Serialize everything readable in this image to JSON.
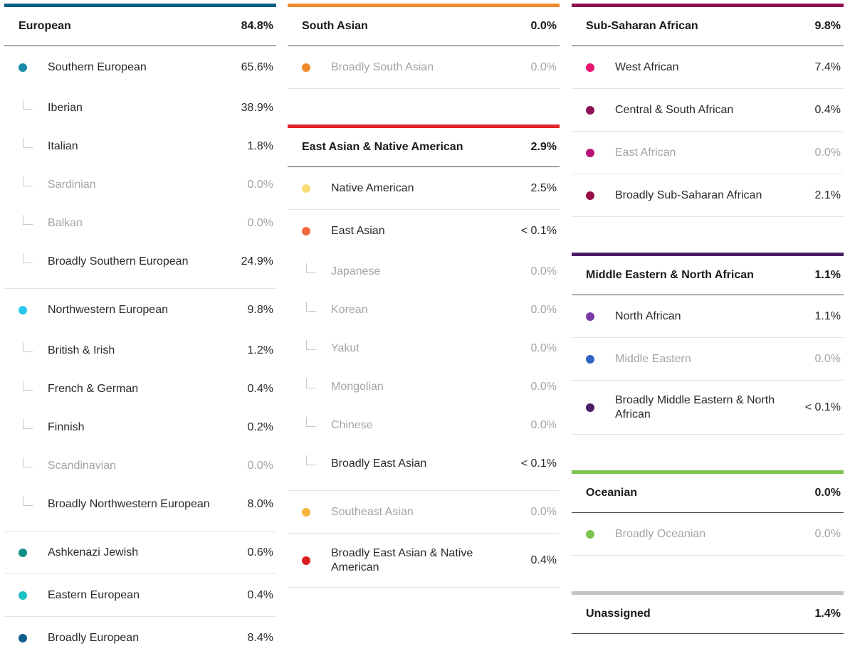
{
  "european": {
    "title": "European",
    "pct": "84.8%",
    "color": "#0b5e85",
    "groups": [
      {
        "label": "Southern European",
        "pct": "65.6%",
        "dot": "#1b8aa5",
        "subs": [
          {
            "label": "Iberian",
            "pct": "38.9%"
          },
          {
            "label": "Italian",
            "pct": "1.8%"
          },
          {
            "label": "Sardinian",
            "pct": "0.0%"
          },
          {
            "label": "Balkan",
            "pct": "0.0%"
          },
          {
            "label": "Broadly Southern European",
            "pct": "24.9%"
          }
        ]
      },
      {
        "label": "Northwestern European",
        "pct": "9.8%",
        "dot": "#27c7ee",
        "subs": [
          {
            "label": "British & Irish",
            "pct": "1.2%"
          },
          {
            "label": "French & German",
            "pct": "0.4%"
          },
          {
            "label": "Finnish",
            "pct": "0.2%"
          },
          {
            "label": "Scandinavian",
            "pct": "0.0%"
          },
          {
            "label": "Broadly Northwestern European",
            "pct": "8.0%"
          }
        ]
      },
      {
        "label": "Ashkenazi Jewish",
        "pct": "0.6%",
        "dot": "#138f86",
        "subs": []
      },
      {
        "label": "Eastern European",
        "pct": "0.4%",
        "dot": "#1cc2c2",
        "subs": []
      },
      {
        "label": "Broadly European",
        "pct": "8.4%",
        "dot": "#0c5f8a",
        "subs": []
      }
    ]
  },
  "south_asian": {
    "title": "South Asian",
    "pct": "0.0%",
    "color": "#f0892c",
    "rows": [
      {
        "label": "Broadly South Asian",
        "pct": "0.0%",
        "dot": "#f0892c"
      }
    ]
  },
  "east_asian": {
    "title": "East Asian & Native American",
    "pct": "2.9%",
    "color": "#e1242a",
    "groups": [
      {
        "label": "Native American",
        "pct": "2.5%",
        "dot": "#f9dc7a",
        "subs": []
      },
      {
        "label": "East Asian",
        "pct": "< 0.1%",
        "dot": "#f2673b",
        "subs": [
          {
            "label": "Japanese",
            "pct": "0.0%"
          },
          {
            "label": "Korean",
            "pct": "0.0%"
          },
          {
            "label": "Yakut",
            "pct": "0.0%"
          },
          {
            "label": "Mongolian",
            "pct": "0.0%"
          },
          {
            "label": "Chinese",
            "pct": "0.0%"
          },
          {
            "label": "Broadly East Asian",
            "pct": "< 0.1%"
          }
        ]
      },
      {
        "label": "Southeast Asian",
        "pct": "0.0%",
        "dot": "#f6b33b",
        "subs": []
      },
      {
        "label": "Broadly East Asian & Native American",
        "pct": "0.4%",
        "dot": "#dc1e22",
        "subs": []
      }
    ]
  },
  "sub_saharan": {
    "title": "Sub-Saharan African",
    "pct": "9.8%",
    "color": "#8e1050",
    "rows": [
      {
        "label": "West African",
        "pct": "7.4%",
        "dot": "#e6146e"
      },
      {
        "label": "Central & South African",
        "pct": "0.4%",
        "dot": "#8a1155"
      },
      {
        "label": "East African",
        "pct": "0.0%",
        "dot": "#b81377"
      },
      {
        "label": "Broadly Sub-Saharan African",
        "pct": "2.1%",
        "dot": "#960e45"
      }
    ]
  },
  "mena": {
    "title": "Middle Eastern & North African",
    "pct": "1.1%",
    "color": "#4a1d66",
    "rows": [
      {
        "label": "North African",
        "pct": "1.1%",
        "dot": "#7b3aa6"
      },
      {
        "label": "Middle Eastern",
        "pct": "0.0%",
        "dot": "#2f62c4"
      },
      {
        "label": "Broadly Middle Eastern & North African",
        "pct": "< 0.1%",
        "dot": "#4a1d66"
      }
    ]
  },
  "oceanian": {
    "title": "Oceanian",
    "pct": "0.0%",
    "color": "#7dc24d",
    "rows": [
      {
        "label": "Broadly Oceanian",
        "pct": "0.0%",
        "dot": "#7dc24d"
      }
    ]
  },
  "unassigned": {
    "title": "Unassigned",
    "pct": "1.4%",
    "color": "#c2c2c2"
  }
}
